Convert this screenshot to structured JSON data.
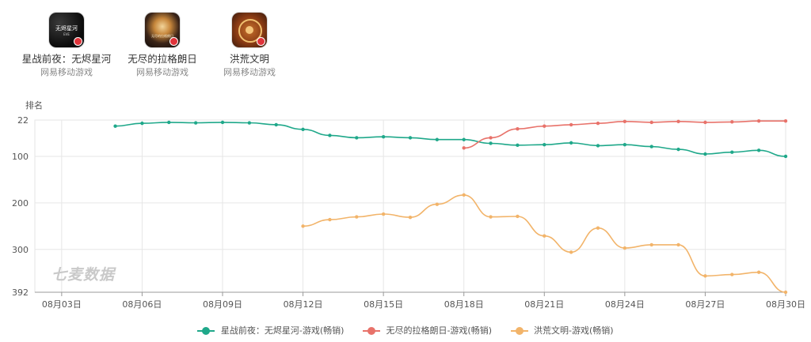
{
  "apps": [
    {
      "name": "星战前夜：无烬星河",
      "publisher": "网易移动游戏",
      "icon": "eve-echoes-app-icon",
      "icon_text": "无烬星河",
      "icon_subtext": "EVE"
    },
    {
      "name": "无尽的拉格朗日",
      "publisher": "网易移动游戏",
      "icon": "infinite-lagrange-app-icon",
      "icon_text": "无尽的拉格朗日"
    },
    {
      "name": "洪荒文明",
      "publisher": "网易移动游戏",
      "icon": "honghuang-app-icon"
    }
  ],
  "watermark": "七麦数据",
  "colors": {
    "series1": "#1fa88a",
    "series2": "#e8726a",
    "series3": "#f2b46a",
    "grid": "#e6e6e6",
    "axis": "#999999"
  },
  "chart_data": {
    "type": "line",
    "ylabel": "排名",
    "y_inverted": true,
    "ylim": [
      22,
      392
    ],
    "yticks": [
      22,
      100,
      200,
      300,
      392
    ],
    "grid": true,
    "legend_position": "bottom",
    "x": [
      "08月03日",
      "08月04日",
      "08月05日",
      "08月06日",
      "08月07日",
      "08月08日",
      "08月09日",
      "08月10日",
      "08月11日",
      "08月12日",
      "08月13日",
      "08月14日",
      "08月15日",
      "08月16日",
      "08月17日",
      "08月18日",
      "08月19日",
      "08月20日",
      "08月21日",
      "08月22日",
      "08月23日",
      "08月24日",
      "08月25日",
      "08月26日",
      "08月27日",
      "08月28日",
      "08月29日",
      "08月30日"
    ],
    "xticks": [
      "08月03日",
      "08月06日",
      "08月09日",
      "08月12日",
      "08月15日",
      "08月18日",
      "08月21日",
      "08月24日",
      "08月27日",
      "08月30日"
    ],
    "series": [
      {
        "name": "星战前夜：无烬星河-游戏(畅销)",
        "color": "#1fa88a",
        "values": [
          null,
          null,
          35,
          29,
          27,
          28,
          27,
          28,
          32,
          42,
          55,
          60,
          58,
          60,
          64,
          64,
          72,
          76,
          75,
          71,
          77,
          75,
          79,
          85,
          95,
          91,
          87,
          100
        ]
      },
      {
        "name": "无尽的拉格朗日-游戏(畅销)",
        "color": "#e8726a",
        "values": [
          null,
          null,
          null,
          null,
          null,
          null,
          null,
          null,
          null,
          null,
          null,
          null,
          null,
          null,
          null,
          82,
          60,
          41,
          35,
          32,
          29,
          25,
          27,
          25,
          27,
          26,
          24,
          24
        ]
      },
      {
        "name": "洪荒文明-游戏(畅销)",
        "color": "#f2b46a",
        "values": [
          null,
          null,
          null,
          null,
          null,
          null,
          null,
          null,
          null,
          250,
          236,
          230,
          224,
          231,
          203,
          183,
          230,
          229,
          271,
          306,
          254,
          297,
          290,
          290,
          357,
          354,
          349,
          392
        ]
      }
    ]
  }
}
